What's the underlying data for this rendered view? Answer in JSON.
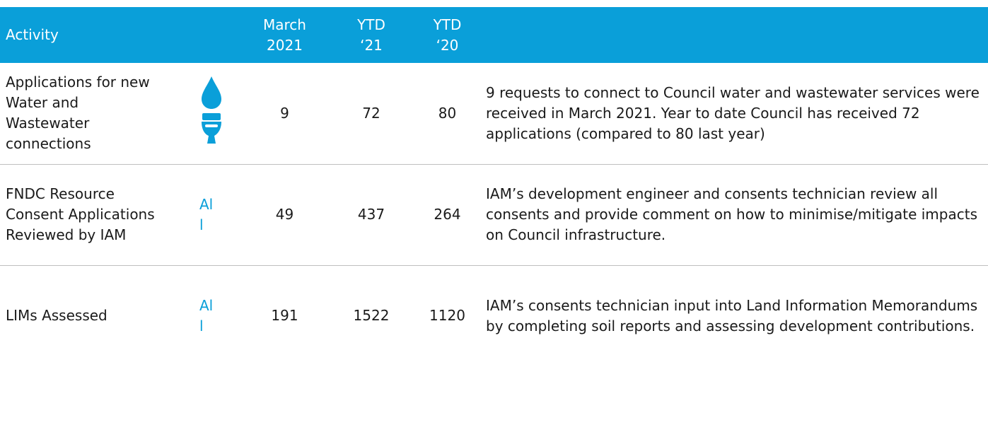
{
  "header": {
    "columns": [
      "Activity",
      "March 2021",
      "YTD ‘21",
      "YTD ‘20"
    ]
  },
  "table": {
    "rows": [
      {
        "activity": "Applications for new Water and Wastewater connections",
        "march": 9,
        "ytd21": 72,
        "ytd20": 80,
        "comment": "9 requests to connect to Council water and wastewater services were received in March 2021.  Year to date Council has received 72 applications (compared to 80 last year)"
      },
      {
        "activity": "FNDC Resource Consent Applications Reviewed by IAM",
        "icon_text": [
          "Al",
          "l"
        ],
        "march": 49,
        "ytd21": 437,
        "ytd20": 264,
        "comment": "IAM’s development engineer and consents technician review all consents and provide comment on how to minimise/mitigate impacts on Council infrastructure."
      },
      {
        "activity": "LIMs Assessed",
        "icon_text": [
          "Al",
          "l"
        ],
        "march": 191,
        "ytd21": 1522,
        "ytd20": 1120,
        "comment": "IAM’s consents technician input into Land Information Memorandums by completing soil reports and assessing development contributions."
      }
    ]
  }
}
